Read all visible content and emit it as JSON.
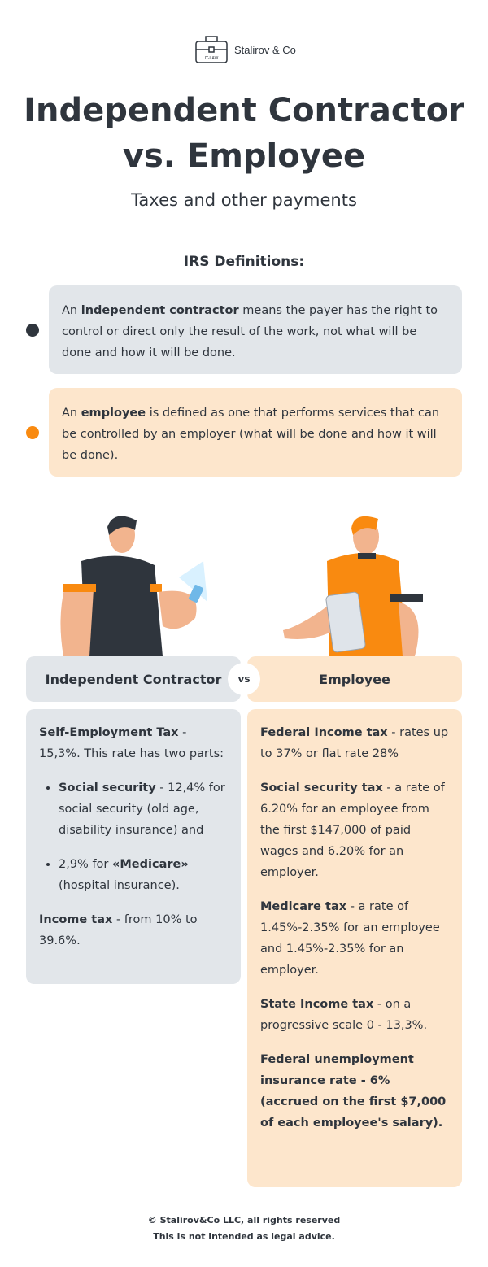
{
  "logo": {
    "name": "Stalirov & Co",
    "badge": "IT-LAW"
  },
  "title_line1": "Independent Contractor",
  "title_line2": "vs. Employee",
  "subtitle": "Taxes and other payments",
  "irs_heading": "IRS Definitions:",
  "definitions": [
    {
      "pre": "An ",
      "bold": "independent contractor",
      "post": " means the payer has the right to control or direct only the result of the work, not what will be done and how it will be done.",
      "dot_color": "#2f353d"
    },
    {
      "pre": "An ",
      "bold": "employee",
      "post": " is defined as one that performs services that can be controlled by an employer (what will be done and how it will be done).",
      "dot_color": "#f98a10"
    }
  ],
  "compare": {
    "left": "Independent Contractor",
    "vs": "vs",
    "right": "Employee"
  },
  "contractor": {
    "se_bold": "Self-Employment Tax",
    "se_text": " - 15,3%. This rate has two parts:",
    "b1_bold": "Social security",
    "b1_text": " - 12,4% for social security (old age, disability insurance) and",
    "b2_pre": "2,9% for ",
    "b2_bold": "«Medicare»",
    "b2_text": " (hospital insurance).",
    "inc_bold": "Income tax",
    "inc_text": " - from 10% to 39.6%."
  },
  "employee": [
    {
      "bold": "Federal Income tax",
      "text": " - rates up to 37% or flat rate 28%"
    },
    {
      "bold": "Social security tax",
      "text": " - a rate of 6.20% for an employee from the first $147,000 of paid wages and 6.20% for an employer."
    },
    {
      "bold": "Medicare tax",
      "text": " - a rate of 1.45%-2.35% for an employee and 1.45%-2.35% for an employer."
    },
    {
      "bold": "State Income tax",
      "text": " - on a progressive scale 0 - 13,3%."
    },
    {
      "bold": "Federal unemployment insurance rate - 6% (accrued on the first $7,000 of each employee's salary).",
      "text": ""
    }
  ],
  "footer": {
    "line1": "© Stalirov&Co LLC, all rights reserved",
    "line2": "This is not intended as legal advice."
  },
  "colors": {
    "dark": "#2f353d",
    "gray": "#e2e6ea",
    "peach": "#fde6cc",
    "orange": "#f98a10"
  }
}
